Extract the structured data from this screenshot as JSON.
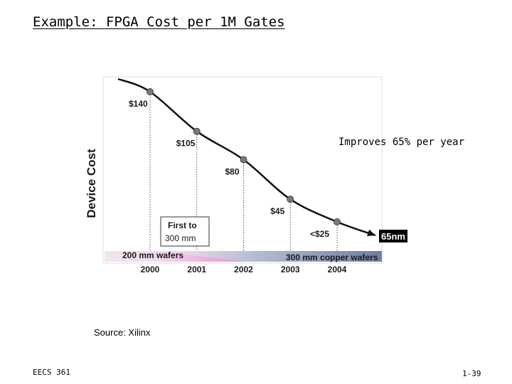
{
  "slide": {
    "title": "Example:  FPGA Cost per 1M Gates",
    "note": "Improves 65% per year",
    "source": "Source:  Xilinx",
    "footer_left": "EECS 361",
    "footer_right": "1-39"
  },
  "chart_data": {
    "type": "line",
    "ylabel": "Device Cost",
    "x": [
      2000,
      2001,
      2002,
      2003,
      2004
    ],
    "categories": [
      "2000",
      "2001",
      "2002",
      "2003",
      "2004"
    ],
    "series": [
      {
        "name": "Device Cost",
        "values": [
          140,
          105,
          80,
          45,
          25
        ]
      }
    ],
    "data_labels": [
      "$140",
      "$105",
      "$80",
      "$45",
      "<$25"
    ],
    "ylim": [
      0,
      150
    ],
    "annotations": {
      "first_300mm_line1": "First to",
      "first_300mm_line2": "300 mm",
      "node": "65nm",
      "wafer_200": "200 mm wafers",
      "wafer_300": "300 mm copper wafers"
    },
    "colors": {
      "line": "#111111",
      "marker": "#7a7a7a",
      "band_pink": "#e89ad8",
      "band_blue": "#7f8fb0",
      "node_box": "#000000"
    }
  }
}
